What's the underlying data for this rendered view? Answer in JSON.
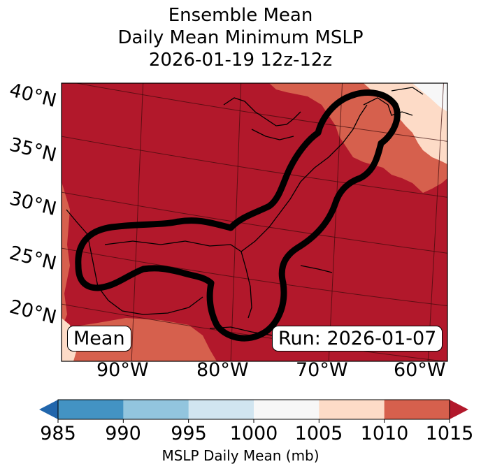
{
  "title": {
    "line1": "Ensemble Mean",
    "line2": "Daily Mean Minimum MSLP",
    "line3": "2026-01-19 12z-12z"
  },
  "map": {
    "lat_labels": [
      "40°N",
      "35°N",
      "30°N",
      "25°N",
      "20°N"
    ],
    "lon_labels": [
      "90°W",
      "80°W",
      "70°W",
      "60°W"
    ],
    "mean_label": "Mean",
    "run_label": "Run: 2026-01-07"
  },
  "colorbar": {
    "label": "MSLP Daily Mean (mb)",
    "ticks": [
      "985",
      "990",
      "995",
      "1000",
      "1005",
      "1010",
      "1015"
    ],
    "colors": [
      "#4393c3",
      "#92c5de",
      "#d1e5f0",
      "#f7f7f7",
      "#fddbc7",
      "#d6604d"
    ],
    "under_color": "#2166ac",
    "over_color": "#b2182b"
  },
  "field_colors": {
    "dominant": "#b2182b",
    "high": "#d6604d",
    "higher": "#fddbc7",
    "highest": "#f7f7f7"
  }
}
